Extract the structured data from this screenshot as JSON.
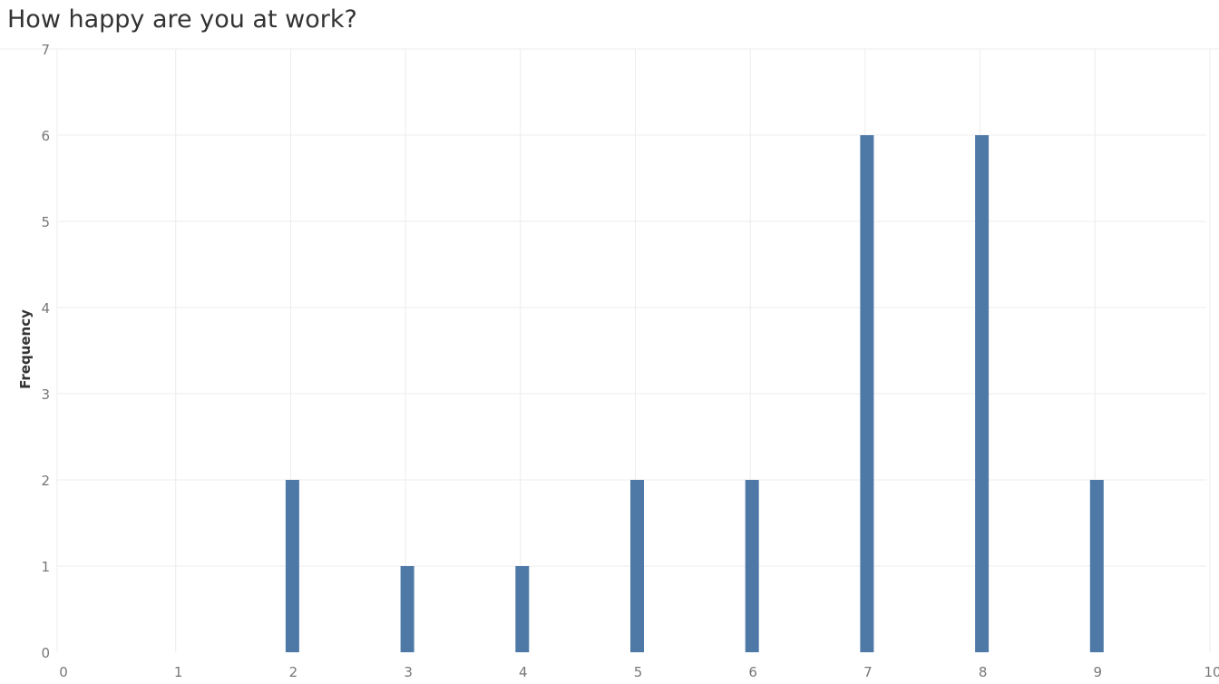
{
  "chart_data": {
    "type": "bar",
    "title": "How happy are you at work?",
    "xlabel": "",
    "ylabel": "Frequency",
    "x": [
      0,
      1,
      2,
      3,
      4,
      5,
      6,
      7,
      8,
      9,
      10
    ],
    "values": [
      0,
      0,
      2,
      1,
      1,
      2,
      2,
      6,
      6,
      2,
      0
    ],
    "xlim": [
      0,
      10
    ],
    "ylim": [
      0,
      7
    ],
    "xticks": [
      "0",
      "1",
      "2",
      "3",
      "4",
      "5",
      "6",
      "7",
      "8",
      "9",
      "10"
    ],
    "yticks": [
      "0",
      "1",
      "2",
      "3",
      "4",
      "5",
      "6",
      "7"
    ],
    "grid": true,
    "bar_color": "#4e79a7",
    "grid_color": "#ececec"
  }
}
